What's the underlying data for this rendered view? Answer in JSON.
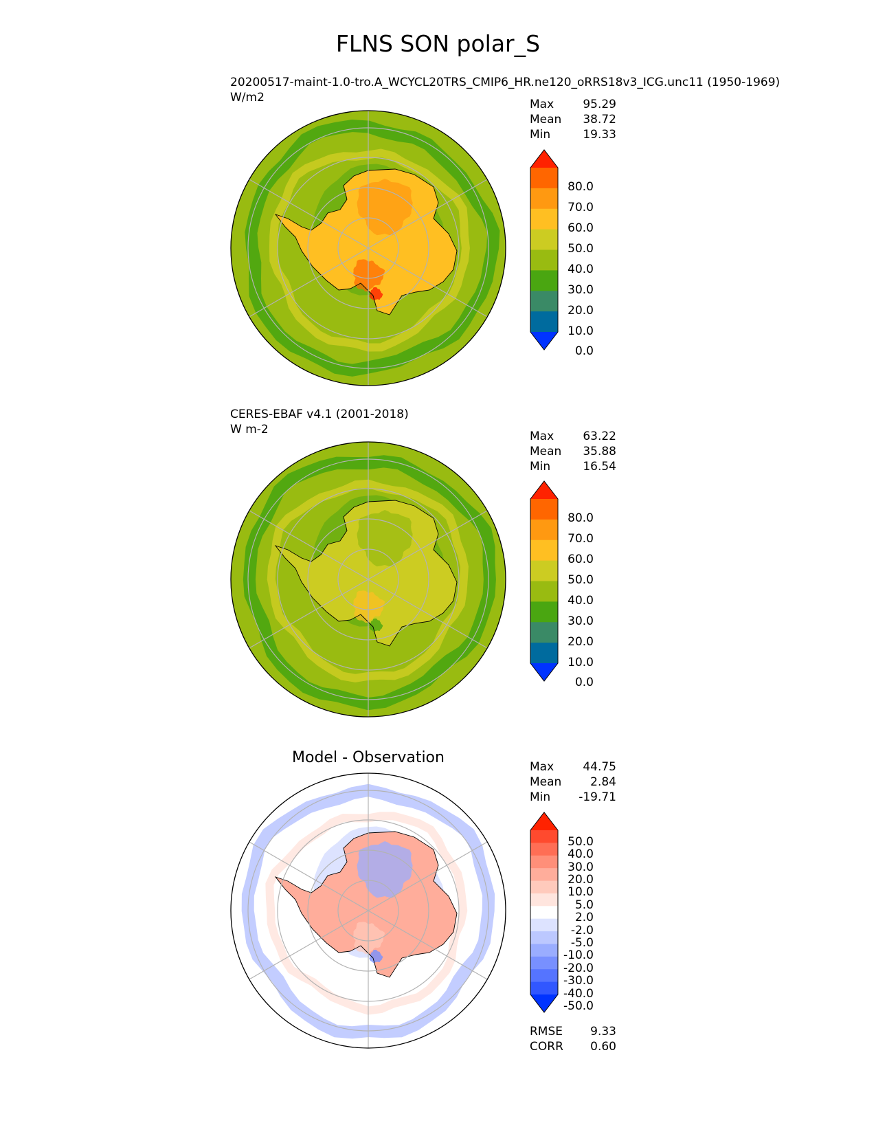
{
  "figure": {
    "title": "FLNS SON polar_S"
  },
  "panels": [
    {
      "id": "test",
      "title_line1": "20200517-maint-1.0-tro.A_WCYCL20TRS_CMIP6_HR.ne120_oRRS18v3_ICG.unc11 (1950-1969)",
      "title_line2": "W/m2",
      "stats": [
        {
          "label": "Max",
          "value": "95.29"
        },
        {
          "label": "Mean",
          "value": "38.72"
        },
        {
          "label": "Min",
          "value": "19.33"
        }
      ],
      "colorbar": {
        "labels": [
          "80.0",
          "70.0",
          "60.0",
          "50.0",
          "40.0",
          "30.0",
          "20.0",
          "10.0",
          "0.0"
        ],
        "colors": [
          "#ff2200",
          "#ff6600",
          "#ff9911",
          "#ffbf22",
          "#cccc22",
          "#99bb11",
          "#4aa611",
          "#3a8a66",
          "#006b9e",
          "#0033ff"
        ]
      },
      "map": {
        "ocean_color": "#99bb11",
        "land_color": "#ffbf22",
        "bands": [
          "#4aa611",
          "#cccc22"
        ],
        "accents": [
          "#ff9911",
          "#ff6600",
          "#ff2200"
        ]
      }
    },
    {
      "id": "ref",
      "title_line1": "CERES-EBAF v4.1 (2001-2018)",
      "title_line2": "W m-2",
      "stats": [
        {
          "label": "Max",
          "value": "63.22"
        },
        {
          "label": "Mean",
          "value": "35.88"
        },
        {
          "label": "Min",
          "value": "16.54"
        }
      ],
      "colorbar": {
        "labels": [
          "80.0",
          "70.0",
          "60.0",
          "50.0",
          "40.0",
          "30.0",
          "20.0",
          "10.0",
          "0.0"
        ],
        "colors": [
          "#ff2200",
          "#ff6600",
          "#ff9911",
          "#ffbf22",
          "#cccc22",
          "#99bb11",
          "#4aa611",
          "#3a8a66",
          "#006b9e",
          "#0033ff"
        ]
      },
      "map": {
        "ocean_color": "#99bb11",
        "land_color": "#cccc22",
        "bands": [
          "#4aa611",
          "#cccc22"
        ],
        "accents": [
          "#99bb11",
          "#ffbf22",
          "#4aa611"
        ]
      }
    },
    {
      "id": "diff",
      "title_line1": "Model - Observation",
      "stats": [
        {
          "label": "Max",
          "value": "44.75"
        },
        {
          "label": "Mean",
          "value": "2.84"
        },
        {
          "label": "Min",
          "value": "-19.71"
        }
      ],
      "colorbar": {
        "labels": [
          "50.0",
          "40.0",
          "30.0",
          "20.0",
          "10.0",
          "5.0",
          "2.0",
          "-2.0",
          "-5.0",
          "-10.0",
          "-20.0",
          "-30.0",
          "-40.0",
          "-50.0"
        ],
        "colors": [
          "#ff2200",
          "#ff4a2e",
          "#ff6e55",
          "#ff8f79",
          "#ffad9b",
          "#ffcabc",
          "#ffe5de",
          "#ffffff",
          "#dde3ff",
          "#bcc8ff",
          "#9aadff",
          "#7890ff",
          "#5574ff",
          "#3157ff",
          "#0033ff"
        ]
      },
      "map": {
        "ocean_color": "#ffffff",
        "land_color": "#ffad9b",
        "bands": [
          "#bcc8ff",
          "#ffe5de"
        ],
        "accents": [
          "#9aadff",
          "#ffcabc",
          "#7890ff"
        ]
      },
      "footer_stats": [
        {
          "label": "RMSE",
          "value": "9.33"
        },
        {
          "label": "CORR",
          "value": "0.60"
        }
      ]
    }
  ]
}
